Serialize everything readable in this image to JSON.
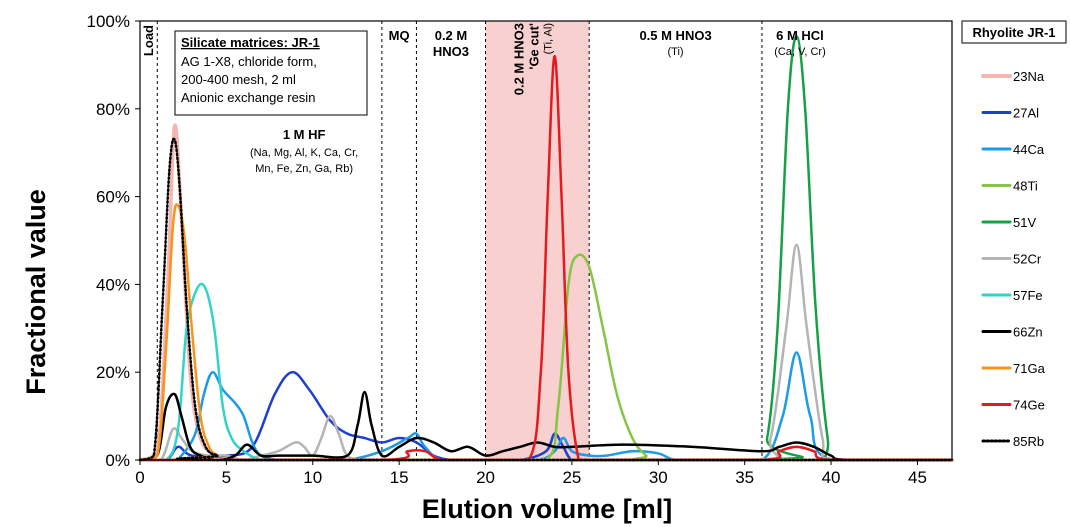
{
  "chart_data": {
    "type": "line",
    "xlabel": "Elution volume [ml]",
    "ylabel": "Fractional value",
    "xlim": [
      0,
      47
    ],
    "ylim": [
      0,
      1
    ],
    "x_ticks": [
      0,
      5,
      10,
      15,
      20,
      25,
      30,
      35,
      40,
      45
    ],
    "x_tick_labels": [
      "0",
      "5",
      "10",
      "15",
      "20",
      "25",
      "30",
      "35",
      "40",
      "45"
    ],
    "y_ticks": [
      0,
      0.2,
      0.4,
      0.6,
      0.8,
      1.0
    ],
    "y_tick_labels": [
      "0%",
      "20%",
      "40%",
      "60%",
      "80%",
      "100%"
    ],
    "grid": false,
    "legend_title": "Rhyolite JR-1",
    "legend_placement": "right",
    "matrix_box": {
      "title": "Silicate matrices: JR-1",
      "lines": [
        "AG 1-X8, chloride form,",
        "200-400 mesh, 2 ml",
        "Anionic exchange resin"
      ]
    },
    "stage_boundaries": [
      1,
      14,
      16,
      20,
      26,
      36
    ],
    "highlight_region": {
      "x": [
        20,
        26
      ],
      "color": "#f9d0d0"
    },
    "stages": [
      {
        "label": "Load",
        "sub": "",
        "x": 0.45,
        "vertical": true
      },
      {
        "label": "1 M HF",
        "sub": "(Na, Mg, Al, K, Ca, Cr, Mn, Fe, Zn, Ga, Rb)",
        "sub_lines": [
          "(Na, Mg, Al, K, Ca, Cr,",
          "Mn, Fe, Zn, Ga, Rb)"
        ],
        "x": 9.5
      },
      {
        "label": "MQ",
        "sub": "",
        "x": 15
      },
      {
        "label": "0.2 M",
        "label2": "HNO3",
        "sub": "",
        "x": 18
      },
      {
        "label": "0.2 M HNO3",
        "label2": "'Ge cut'",
        "sub": "(Ti, Al)",
        "x": 22.9,
        "vertical": true,
        "color": "#e41a1c"
      },
      {
        "label": "0.5 M HNO3",
        "sub": "(Ti)",
        "x": 31
      },
      {
        "label": "6 M HCl",
        "sub": "(Ca, V, Cr)",
        "x": 38.2
      }
    ],
    "series": [
      {
        "name": "23Na",
        "color": "#f4b6b0",
        "width": 3.5,
        "dash": "",
        "x": [
          0,
          1.0,
          1.6,
          2.0,
          2.4,
          2.9,
          3.5,
          4.5,
          6,
          10,
          20,
          30,
          40,
          47
        ],
        "y": [
          0,
          0.02,
          0.4,
          0.76,
          0.55,
          0.2,
          0.05,
          0.01,
          0,
          0,
          0,
          0,
          0,
          0
        ]
      },
      {
        "name": "27Al",
        "color": "#1f3fd0",
        "width": 2.5,
        "dash": "",
        "x": [
          0,
          1.5,
          2.2,
          3,
          5,
          6.5,
          7.8,
          8.8,
          9.8,
          11,
          12,
          13,
          14,
          15,
          16,
          17,
          18,
          19,
          20,
          22,
          23.5,
          24,
          24.5,
          25,
          26,
          30,
          47
        ],
        "y": [
          0,
          0,
          0.03,
          0.01,
          0.01,
          0.03,
          0.15,
          0.2,
          0.16,
          0.09,
          0.06,
          0.05,
          0.04,
          0.05,
          0.04,
          0.01,
          0,
          0,
          0,
          0,
          0.02,
          0.06,
          0.03,
          0,
          0,
          0,
          0
        ]
      },
      {
        "name": "44Ca",
        "color": "#1e9be8",
        "width": 2.5,
        "dash": "",
        "x": [
          0,
          1.8,
          2.4,
          3.2,
          3.7,
          4.2,
          4.8,
          5.5,
          6.0,
          6.5,
          7,
          8,
          9,
          10,
          12,
          14,
          15.5,
          16,
          16.5,
          17.5,
          20,
          23,
          24,
          24.5,
          25,
          26,
          27,
          28.5,
          30,
          31,
          33,
          36,
          37.2,
          38,
          38.8,
          40,
          47
        ],
        "y": [
          0,
          0,
          0.01,
          0.06,
          0.15,
          0.2,
          0.16,
          0.13,
          0.1,
          0.04,
          0.01,
          0,
          0,
          0,
          0,
          0.02,
          0.05,
          0.06,
          0.03,
          0,
          0,
          0,
          0.02,
          0.05,
          0.02,
          0.01,
          0.01,
          0.02,
          0.015,
          0,
          0,
          0,
          0.1,
          0.245,
          0.1,
          0,
          0
        ]
      },
      {
        "name": "48Ti",
        "color": "#86c544",
        "width": 2.5,
        "dash": "",
        "x": [
          0,
          20,
          23.5,
          24.2,
          24.8,
          25.3,
          26,
          26.8,
          27.6,
          28.5,
          29.3,
          30,
          47
        ],
        "y": [
          0,
          0,
          0,
          0.12,
          0.4,
          0.465,
          0.44,
          0.3,
          0.15,
          0.05,
          0.01,
          0,
          0
        ]
      },
      {
        "name": "51V",
        "color": "#17a048",
        "width": 2.5,
        "dash": "",
        "x": [
          0,
          35.5,
          36.3,
          36.9,
          37.5,
          38.0,
          38.5,
          39.1,
          39.8,
          40.3,
          47
        ],
        "y": [
          0,
          0,
          0.05,
          0.3,
          0.8,
          0.965,
          0.8,
          0.35,
          0.05,
          0,
          0
        ]
      },
      {
        "name": "52Cr",
        "color": "#b4b4b4",
        "width": 2.5,
        "dash": "",
        "x": [
          0,
          1.2,
          1.9,
          2.4,
          3,
          4,
          5,
          6,
          7,
          8,
          9,
          9.5,
          10,
          10.5,
          11,
          11.5,
          12,
          13,
          14,
          20,
          35.5,
          36.5,
          37.4,
          38,
          38.6,
          39.5,
          40.2,
          47
        ],
        "y": [
          0,
          0,
          0.07,
          0.05,
          0.02,
          0.01,
          0.01,
          0,
          0.01,
          0.02,
          0.04,
          0.03,
          0.01,
          0.05,
          0.1,
          0.06,
          0.01,
          0,
          0,
          0,
          0,
          0.05,
          0.3,
          0.49,
          0.3,
          0.05,
          0,
          0
        ]
      },
      {
        "name": "57Fe",
        "color": "#33d3cc",
        "width": 2.5,
        "dash": "",
        "x": [
          0,
          1.5,
          2.2,
          2.7,
          3.3,
          3.8,
          4.3,
          4.8,
          5.3,
          6,
          7,
          8,
          9,
          10,
          12,
          14,
          47
        ],
        "y": [
          0,
          0,
          0.07,
          0.3,
          0.39,
          0.39,
          0.3,
          0.12,
          0.05,
          0.02,
          0,
          0,
          0,
          0,
          0,
          0,
          0
        ]
      },
      {
        "name": "66Zn",
        "color": "#000000",
        "width": 2.5,
        "dash": "",
        "x": [
          0,
          1.0,
          1.5,
          2.0,
          2.4,
          2.9,
          3.5,
          4.5,
          5.5,
          6.2,
          7,
          8,
          10,
          12,
          12.6,
          13.0,
          13.4,
          14,
          15,
          16,
          17,
          18,
          19,
          20,
          21,
          22,
          23,
          24,
          25,
          28,
          32,
          36,
          37,
          38,
          39,
          40,
          41,
          47
        ],
        "y": [
          0,
          0.01,
          0.12,
          0.15,
          0.1,
          0.03,
          0.01,
          0,
          0.01,
          0.035,
          0.01,
          0.01,
          0.01,
          0.01,
          0.08,
          0.155,
          0.08,
          0.01,
          0.03,
          0.05,
          0.04,
          0.02,
          0.03,
          0.01,
          0.02,
          0.03,
          0.04,
          0.03,
          0.03,
          0.035,
          0.03,
          0.02,
          0.03,
          0.04,
          0.03,
          0.01,
          0,
          0
        ]
      },
      {
        "name": "71Ga",
        "color": "#f7941d",
        "width": 2.5,
        "dash": "",
        "x": [
          0,
          1.0,
          1.5,
          1.9,
          2.2,
          2.6,
          3.0,
          3.5,
          4.0,
          4.5,
          5.5,
          47
        ],
        "y": [
          0,
          0.01,
          0.25,
          0.53,
          0.58,
          0.5,
          0.3,
          0.1,
          0.03,
          0.01,
          0,
          0
        ]
      },
      {
        "name": "74Ge",
        "color": "#e41a1c",
        "width": 2.5,
        "dash": "",
        "x": [
          0,
          14,
          15.5,
          16.5,
          17.5,
          20,
          22.5,
          23.2,
          23.6,
          24.0,
          24.4,
          24.8,
          25.4,
          26,
          36,
          37,
          38,
          39,
          40,
          47
        ],
        "y": [
          0,
          0,
          0.02,
          0.02,
          0,
          0,
          0,
          0.2,
          0.6,
          0.92,
          0.6,
          0.2,
          0,
          0,
          0,
          0.02,
          0.03,
          0.02,
          0,
          0
        ]
      },
      {
        "name": "85Rb",
        "color": "#000000",
        "width": 2.5,
        "dash": "1.5,2.5",
        "x": [
          0,
          0.8,
          1.3,
          1.7,
          2.0,
          2.3,
          2.7,
          3.2,
          3.8,
          4.5,
          5.5,
          47
        ],
        "y": [
          0,
          0.01,
          0.35,
          0.66,
          0.73,
          0.62,
          0.35,
          0.12,
          0.03,
          0.01,
          0,
          0
        ]
      }
    ]
  }
}
